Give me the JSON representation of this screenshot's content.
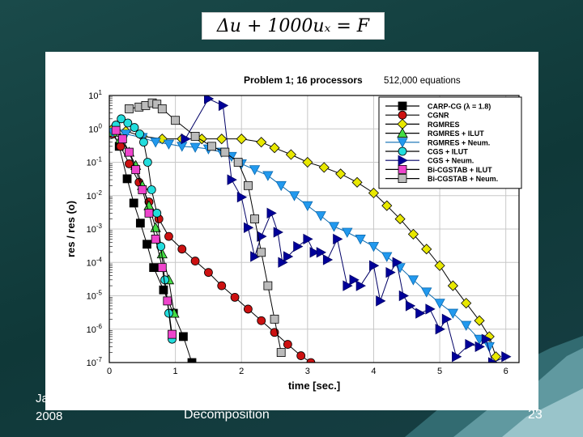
{
  "slide": {
    "equation": "Δu + 1000uₓ = F",
    "footer_left_line1": "Ja",
    "footer_left_line2": "2008",
    "footer_mid": "Decomposition",
    "page_number": "23"
  },
  "chart_data": {
    "type": "line",
    "title": "Problem 1;  16 processors",
    "subtitle": "512,000 equations",
    "xlabel": "time [sec.]",
    "ylabel": "res / res (o)",
    "xlim": [
      0,
      6.2
    ],
    "ylim": [
      1e-07,
      10
    ],
    "y_scale": "log",
    "grid": true,
    "legend_position": "top-right",
    "x_ticks": [
      "0",
      "1",
      "2",
      "3",
      "4",
      "5",
      "6"
    ],
    "y_ticks": [
      "10^1",
      "10^0",
      "10^-1",
      "10^-2",
      "10^-3",
      "10^-4",
      "10^-5",
      "10^-6",
      "10^-7"
    ],
    "series": [
      {
        "name": "CARP-CG (λ = 1.8)",
        "color": "#000000",
        "fill": "#000000",
        "marker": "square",
        "x": [
          0.05,
          0.15,
          0.27,
          0.37,
          0.47,
          0.57,
          0.67,
          0.82,
          0.97,
          1.12,
          1.25
        ],
        "y": [
          0.9,
          0.3,
          0.032,
          0.006,
          0.0015,
          0.00035,
          7e-05,
          1.5e-05,
          3e-06,
          6e-07,
          1e-07
        ]
      },
      {
        "name": "CGNR",
        "color": "#000000",
        "fill": "#cc1111",
        "marker": "circle",
        "x": [
          0.05,
          0.17,
          0.3,
          0.45,
          0.6,
          0.75,
          0.9,
          1.1,
          1.3,
          1.5,
          1.7,
          1.9,
          2.1,
          2.3,
          2.5,
          2.7,
          2.9,
          3.05
        ],
        "y": [
          0.7,
          0.3,
          0.09,
          0.025,
          0.0065,
          0.002,
          0.0006,
          0.00025,
          0.00011,
          5e-05,
          2e-05,
          9e-06,
          4e-06,
          1.8e-06,
          8e-07,
          3.5e-07,
          1.6e-07,
          1e-07
        ]
      },
      {
        "name": "RGMRES",
        "color": "#000000",
        "fill": "#e8e800",
        "marker": "diamond",
        "x": [
          0.05,
          0.25,
          0.5,
          0.8,
          1.1,
          1.4,
          1.7,
          2.0,
          2.3,
          2.5,
          2.75,
          3.0,
          3.25,
          3.5,
          3.75,
          4.0,
          4.2,
          4.4,
          4.6,
          4.8,
          5.0,
          5.2,
          5.4,
          5.6,
          5.75,
          5.85
        ],
        "y": [
          1.0,
          0.85,
          0.6,
          0.5,
          0.5,
          0.5,
          0.5,
          0.5,
          0.4,
          0.27,
          0.17,
          0.1,
          0.07,
          0.045,
          0.025,
          0.012,
          0.005,
          0.002,
          0.0007,
          0.00025,
          8e-05,
          2e-05,
          6e-06,
          1.8e-06,
          6e-07,
          1.5e-07
        ]
      },
      {
        "name": "RGMRES + ILUT",
        "color": "#000000",
        "fill": "#44dd44",
        "marker": "triangle",
        "x": [
          0.05,
          0.17,
          0.3,
          0.4,
          0.5,
          0.6,
          0.7,
          0.8,
          0.9,
          0.98
        ],
        "y": [
          0.8,
          0.5,
          0.2,
          0.08,
          0.02,
          0.005,
          0.0011,
          0.00018,
          3e-05,
          3e-06
        ]
      },
      {
        "name": "RGMRES + Neum.",
        "color": "#0a6ab0",
        "fill": "#2299ee",
        "marker": "triangle-down",
        "x": [
          0.05,
          0.25,
          0.5,
          0.7,
          0.9,
          1.1,
          1.3,
          1.5,
          1.7,
          1.85,
          2.0,
          2.2,
          2.4,
          2.6,
          2.8,
          3.0,
          3.2,
          3.4,
          3.6,
          3.8,
          4.0,
          4.2,
          4.4,
          4.6,
          4.8,
          5.0,
          5.2,
          5.4,
          5.6,
          5.75
        ],
        "y": [
          0.8,
          0.7,
          0.55,
          0.4,
          0.35,
          0.3,
          0.28,
          0.25,
          0.2,
          0.15,
          0.09,
          0.06,
          0.04,
          0.02,
          0.01,
          0.005,
          0.0025,
          0.0012,
          0.0008,
          0.0005,
          0.0003,
          0.00015,
          7e-05,
          3e-05,
          1.3e-05,
          6e-06,
          3e-06,
          1.3e-06,
          5e-07,
          3e-07
        ]
      },
      {
        "name": "CGS + ILUT",
        "color": "#000000",
        "fill": "#22dddd",
        "marker": "circle",
        "x": [
          0.1,
          0.18,
          0.28,
          0.38,
          0.46,
          0.52,
          0.58,
          0.64,
          0.72,
          0.78,
          0.84,
          0.9,
          0.95
        ],
        "y": [
          1.3,
          2.0,
          1.5,
          1.1,
          0.7,
          0.4,
          0.1,
          0.015,
          0.003,
          0.0003,
          3e-05,
          3e-06,
          5e-07
        ]
      },
      {
        "name": "CGS + Neum.",
        "color": "#000066",
        "fill": "#000099",
        "marker": "triangle-right",
        "x": [
          1.15,
          1.5,
          1.72,
          1.85,
          2.0,
          2.1,
          2.2,
          2.3,
          2.45,
          2.55,
          2.62,
          2.7,
          2.85,
          3.0,
          3.1,
          3.2,
          3.3,
          3.45,
          3.6,
          3.7,
          3.8,
          4.0,
          4.1,
          4.25,
          4.35,
          4.45,
          4.55,
          4.7,
          4.85,
          5.0,
          5.1,
          5.25,
          5.45,
          5.6,
          5.7,
          5.8,
          6.0
        ],
        "y": [
          0.5,
          8,
          5,
          0.03,
          0.009,
          0.0011,
          0.00015,
          0.0006,
          0.003,
          0.0008,
          0.0001,
          0.00015,
          0.0003,
          0.0005,
          0.0002,
          0.0002,
          0.00012,
          0.0005,
          2e-05,
          3e-05,
          2e-05,
          8e-05,
          7e-06,
          5e-05,
          0.0001,
          1e-05,
          5e-06,
          3e-06,
          4e-06,
          1e-06,
          2e-06,
          1.5e-07,
          3.5e-07,
          3e-07,
          5e-07,
          1e-07,
          1.5e-07
        ]
      },
      {
        "name": "Bi-CGSTAB + ILUT",
        "color": "#000000",
        "fill": "#ee44cc",
        "marker": "square",
        "x": [
          0.1,
          0.2,
          0.3,
          0.4,
          0.5,
          0.6,
          0.7,
          0.8,
          0.88,
          0.95
        ],
        "y": [
          0.9,
          0.5,
          0.2,
          0.06,
          0.015,
          0.003,
          0.0005,
          7e-05,
          7e-06,
          7e-07
        ]
      },
      {
        "name": "Bi-CGSTAB + Neum.",
        "color": "#000000",
        "fill": "#bbbbbb",
        "marker": "square",
        "x": [
          0.3,
          0.45,
          0.55,
          0.65,
          0.72,
          0.8,
          1.0,
          1.3,
          1.55,
          1.75,
          1.95,
          2.1,
          2.2,
          2.3,
          2.4,
          2.5,
          2.6
        ],
        "y": [
          4,
          4.5,
          5,
          6,
          5.5,
          4,
          1.8,
          0.6,
          0.3,
          0.2,
          0.1,
          0.02,
          0.002,
          0.0002,
          2e-05,
          2e-06,
          2e-07
        ]
      }
    ]
  }
}
